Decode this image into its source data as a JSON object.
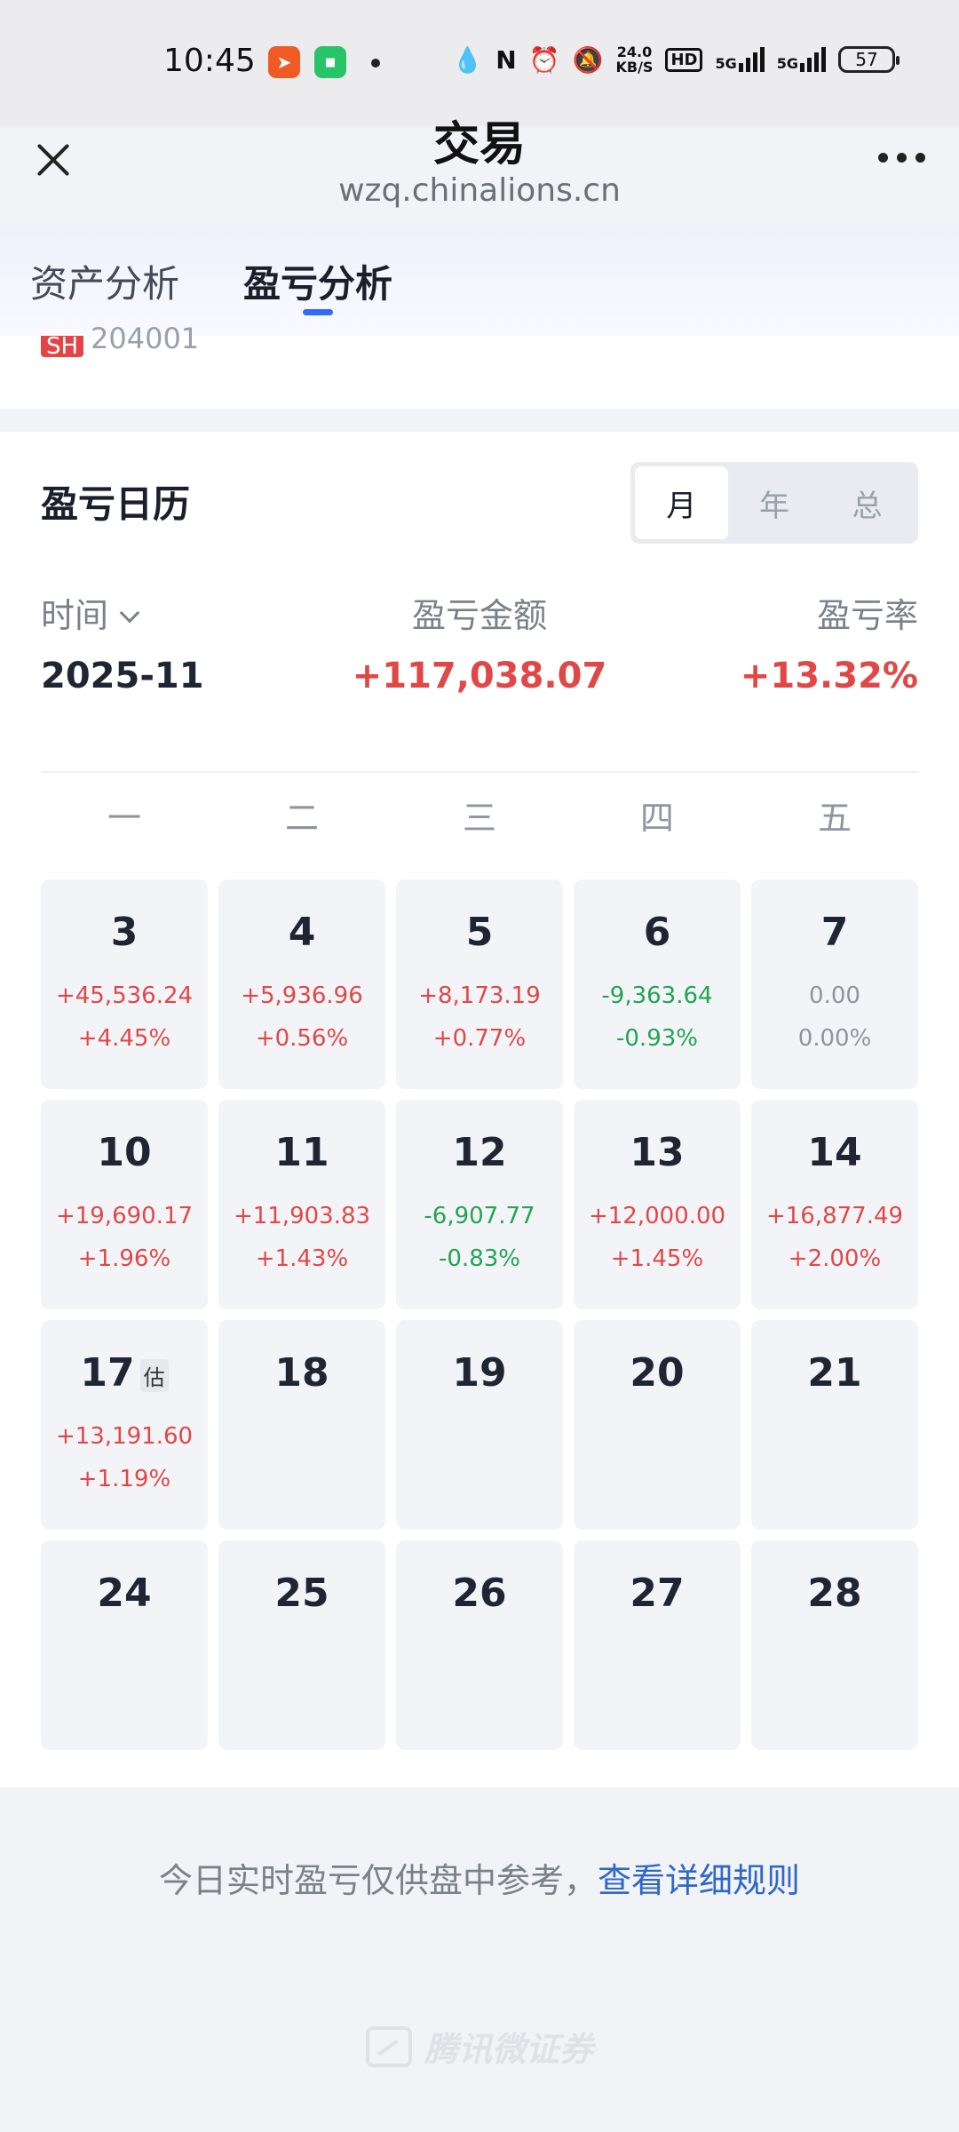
{
  "status_bar": {
    "time": "10:45",
    "network_speed_value": "24.0",
    "network_speed_unit": "KB/S",
    "hd_label": "HD",
    "signal_1": "5G",
    "signal_2": "5G",
    "battery": "57"
  },
  "nav": {
    "title": "交易",
    "url": "wzq.chinalions.cn"
  },
  "tabs": [
    {
      "label": "资产分析",
      "active": false
    },
    {
      "label": "盈亏分析",
      "active": true
    }
  ],
  "partial_item": {
    "market": "SH",
    "code": "204001"
  },
  "calendar": {
    "title": "盈亏日历",
    "period_options": [
      {
        "label": "月",
        "active": true
      },
      {
        "label": "年",
        "active": false
      },
      {
        "label": "总",
        "active": false
      }
    ],
    "summary_labels": {
      "time": "时间",
      "amount": "盈亏金额",
      "rate": "盈亏率"
    },
    "summary_values": {
      "date": "2025-11",
      "amount": "+117,038.07",
      "rate": "+13.32%"
    },
    "weekdays": [
      "一",
      "二",
      "三",
      "四",
      "五"
    ],
    "estimate_tag": "估",
    "days": [
      {
        "day": "3",
        "amount": "+45,536.24",
        "pct": "+4.45%",
        "trend": "up"
      },
      {
        "day": "4",
        "amount": "+5,936.96",
        "pct": "+0.56%",
        "trend": "up"
      },
      {
        "day": "5",
        "amount": "+8,173.19",
        "pct": "+0.77%",
        "trend": "up"
      },
      {
        "day": "6",
        "amount": "-9,363.64",
        "pct": "-0.93%",
        "trend": "down"
      },
      {
        "day": "7",
        "amount": "0.00",
        "pct": "0.00%",
        "trend": "flat"
      },
      {
        "day": "10",
        "amount": "+19,690.17",
        "pct": "+1.96%",
        "trend": "up"
      },
      {
        "day": "11",
        "amount": "+11,903.83",
        "pct": "+1.43%",
        "trend": "up"
      },
      {
        "day": "12",
        "amount": "-6,907.77",
        "pct": "-0.83%",
        "trend": "down"
      },
      {
        "day": "13",
        "amount": "+12,000.00",
        "pct": "+1.45%",
        "trend": "up"
      },
      {
        "day": "14",
        "amount": "+16,877.49",
        "pct": "+2.00%",
        "trend": "up"
      },
      {
        "day": "17",
        "amount": "+13,191.60",
        "pct": "+1.19%",
        "trend": "up",
        "estimated": true
      },
      {
        "day": "18"
      },
      {
        "day": "19"
      },
      {
        "day": "20"
      },
      {
        "day": "21"
      },
      {
        "day": "24"
      },
      {
        "day": "25"
      },
      {
        "day": "26"
      },
      {
        "day": "27"
      },
      {
        "day": "28"
      }
    ]
  },
  "footer": {
    "note": "今日实时盈亏仅供盘中参考，",
    "link": "查看详细规则",
    "watermark": "腾讯微证券"
  }
}
